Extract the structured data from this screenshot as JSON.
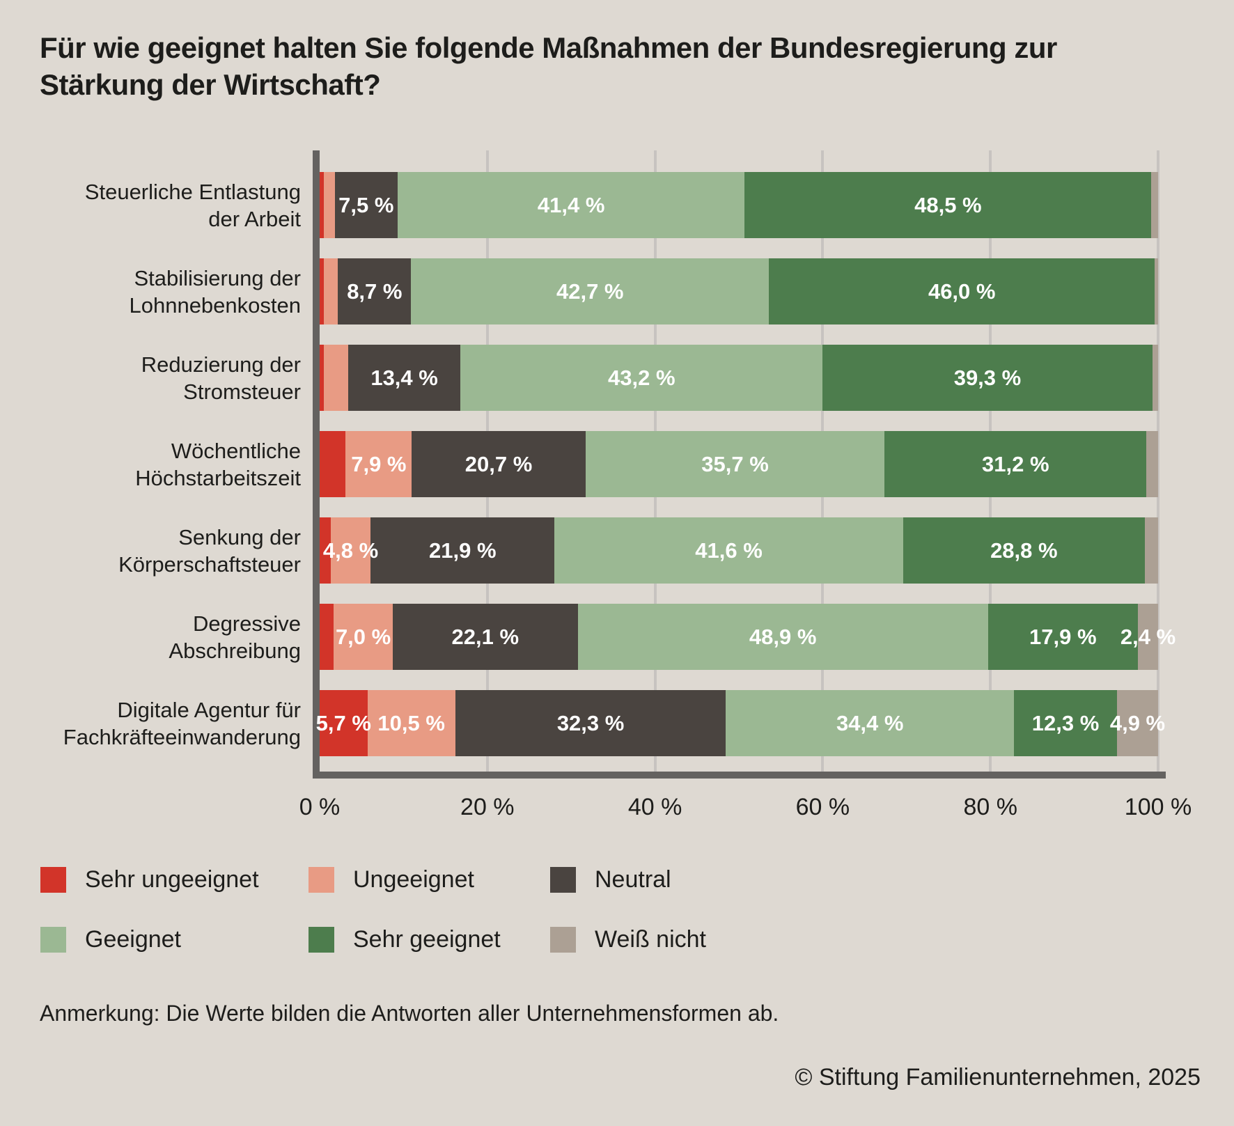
{
  "title": "Für wie geeignet halten Sie folgende Maßnahmen der Bundesregierung zur Stärkung der Wirtschaft?",
  "note": "Anmerkung: Die Werte bilden die Antworten aller Unternehmensformen ab.",
  "copyright": "© Stiftung Familienunternehmen, 2025",
  "colors": {
    "sehr_ungeeignet": "#d23429",
    "ungeeignet": "#e89b84",
    "neutral": "#4a4440",
    "geeignet": "#9bb893",
    "sehr_geeignet": "#4d7d4d",
    "weiss_nicht": "#aca094",
    "background": "#ded9d2",
    "gridline": "#c7c3c0",
    "axis": "#646260",
    "text": "#1d1d1b",
    "value_label": "#ffffff"
  },
  "chart_data": {
    "type": "bar",
    "orientation": "horizontal",
    "stacked": true,
    "unit": "%",
    "xlim": [
      0,
      100
    ],
    "grid": true,
    "x_ticks": [
      "0 %",
      "20 %",
      "40 %",
      "60 %",
      "80 %",
      "100 %"
    ],
    "series_keys": [
      "sehr_ungeeignet",
      "ungeeignet",
      "neutral",
      "geeignet",
      "sehr_geeignet",
      "weiss_nicht"
    ],
    "series_names": [
      "Sehr ungeeignet",
      "Ungeeignet",
      "Neutral",
      "Geeignet",
      "Sehr geeignet",
      "Weiß nicht"
    ],
    "rows": [
      {
        "category_lines": [
          "Steuerliche Entlastung",
          "der Arbeit"
        ],
        "values": [
          0.5,
          1.3,
          7.5,
          41.4,
          48.5,
          0.8
        ],
        "labels": [
          "",
          "",
          "7,5 %",
          "41,4 %",
          "48,5 %",
          ""
        ]
      },
      {
        "category_lines": [
          "Stabilisierung der",
          "Lohnnebenkosten"
        ],
        "values": [
          0.5,
          1.7,
          8.7,
          42.7,
          46.0,
          0.4
        ],
        "labels": [
          "",
          "",
          "8,7 %",
          "42,7 %",
          "46,0 %",
          ""
        ]
      },
      {
        "category_lines": [
          "Reduzierung der",
          "Stromsteuer"
        ],
        "values": [
          0.5,
          2.9,
          13.4,
          43.2,
          39.3,
          0.7
        ],
        "labels": [
          "",
          "",
          "13,4 %",
          "43,2 %",
          "39,3 %",
          ""
        ]
      },
      {
        "category_lines": [
          "Wöchentliche",
          "Höchstarbeitszeit"
        ],
        "values": [
          3.1,
          7.9,
          20.7,
          35.7,
          31.2,
          1.4
        ],
        "labels": [
          "",
          "7,9 %",
          "20,7 %",
          "35,7 %",
          "31,2 %",
          ""
        ]
      },
      {
        "category_lines": [
          "Senkung der",
          "Körperschaftsteuer"
        ],
        "values": [
          1.3,
          4.8,
          21.9,
          41.6,
          28.8,
          1.6
        ],
        "labels": [
          "",
          "4,8 %",
          "21,9 %",
          "41,6 %",
          "28,8 %",
          ""
        ]
      },
      {
        "category_lines": [
          "Degressive",
          "Abschreibung"
        ],
        "values": [
          1.7,
          7.0,
          22.1,
          48.9,
          17.9,
          2.4
        ],
        "labels": [
          "",
          "7,0 %",
          "22,1 %",
          "48,9 %",
          "17,9 %",
          "2,4 %"
        ]
      },
      {
        "category_lines": [
          "Digitale Agentur für",
          "Fachkräfteeinwanderung"
        ],
        "values": [
          5.7,
          10.5,
          32.3,
          34.4,
          12.3,
          4.9
        ],
        "labels": [
          "5,7 %",
          "10,5 %",
          "32,3 %",
          "34,4 %",
          "12,3 %",
          "4,9 %"
        ]
      }
    ]
  },
  "legend": {
    "items": [
      {
        "label": "Sehr ungeeignet",
        "color_key": "sehr_ungeeignet"
      },
      {
        "label": "Ungeeignet",
        "color_key": "ungeeignet"
      },
      {
        "label": "Neutral",
        "color_key": "neutral"
      },
      {
        "label": "Geeignet",
        "color_key": "geeignet"
      },
      {
        "label": "Sehr geeignet",
        "color_key": "sehr_geeignet"
      },
      {
        "label": "Weiß nicht",
        "color_key": "weiss_nicht"
      }
    ]
  }
}
